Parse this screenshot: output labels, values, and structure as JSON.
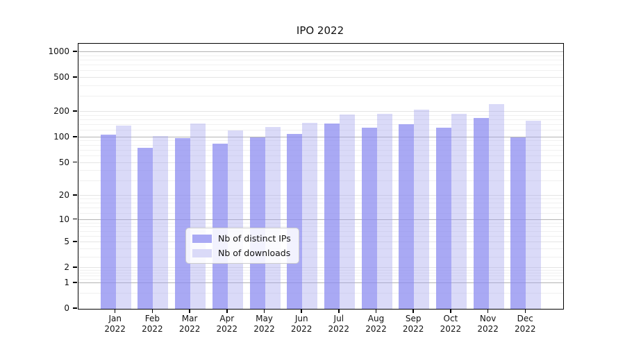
{
  "chart_data": {
    "type": "bar",
    "title": "IPO 2022",
    "categories": [
      "Jan 2022",
      "Feb 2022",
      "Mar 2022",
      "Apr 2022",
      "May 2022",
      "Jun 2022",
      "Jul 2022",
      "Aug 2022",
      "Sep 2022",
      "Oct 2022",
      "Nov 2022",
      "Dec 2022"
    ],
    "series": [
      {
        "name": "Nb of distinct IPs",
        "values": [
          107,
          75,
          98,
          85,
          100,
          110,
          145,
          130,
          143,
          131,
          168,
          100
        ]
      },
      {
        "name": "Nb of downloads",
        "values": [
          137,
          104,
          146,
          121,
          133,
          148,
          187,
          190,
          210,
          190,
          245,
          157
        ]
      }
    ],
    "xlabel": "",
    "ylabel": "",
    "y_ticks": [
      0,
      1,
      2,
      5,
      10,
      20,
      50,
      100,
      200,
      500,
      1000
    ],
    "ylim": [
      0,
      1250
    ],
    "yscale": "symlog (position proportional to ln(1+v))",
    "grid": true,
    "legend_position": "inside-bottom-center"
  },
  "colors": {
    "ips_bar": "rgba(140,140,240,0.75)",
    "downloads_bar": "rgba(163,163,238,0.40)",
    "ips_swatch": "#a9a9f4",
    "downloads_swatch": "#dadaf8",
    "grid_decade": "#b3b3b3",
    "grid_major": "#e4e4e4",
    "grid_minor": "#f0f0f0",
    "axis": "#000000",
    "text": "#111111"
  }
}
